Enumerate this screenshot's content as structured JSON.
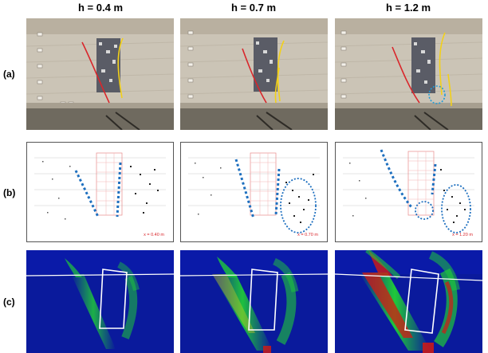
{
  "columns": [
    "h = 0.4 m",
    "h = 0.7 m",
    "h = 1.2 m"
  ],
  "rows": [
    "(a)",
    "(b)",
    "(c)"
  ],
  "row_b_scale": [
    "x = 0.40 m",
    "x = 0.70 m",
    "x = 1.20 m"
  ],
  "colors": {
    "wall": "#c8c1b3",
    "red_line": "#d9262b",
    "yellow_line": "#f2d019",
    "blue_dotted": "#1d6fbf",
    "mesh_blue": "#0a1a9c",
    "mesh_green": "#1fc93a",
    "mesh_red": "#d41a12"
  }
}
